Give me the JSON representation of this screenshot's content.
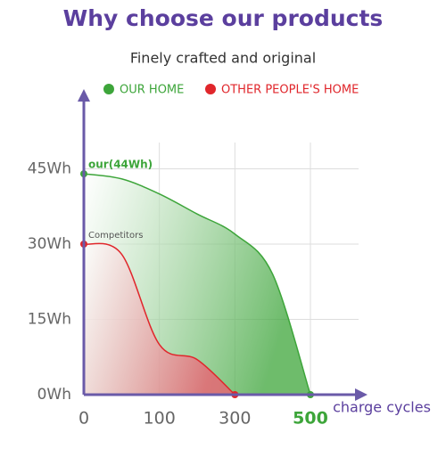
{
  "chart_data": {
    "type": "area-curve",
    "title": "Why choose our products",
    "subtitle": "Finely crafted and original",
    "x_label": "charge cycles",
    "categories": [
      "0",
      null,
      "100",
      null,
      "300",
      null,
      "500"
    ],
    "ylim": [
      0,
      60
    ],
    "yticks": [
      {
        "value": 0,
        "label": "0Wh"
      },
      {
        "value": 15,
        "label": "15Wh"
      },
      {
        "value": 30,
        "label": "30Wh"
      },
      {
        "value": 45,
        "label": "45Wh"
      }
    ],
    "grid": true,
    "series": [
      {
        "name": "OUR HOME",
        "color": "#3da53a",
        "values": [
          44,
          43,
          40,
          36,
          32,
          24,
          0
        ],
        "annotation": "our(44Wh)"
      },
      {
        "name": "OTHER PEOPLE'S HOME",
        "color": "#e0262b",
        "values": [
          30,
          28,
          10,
          7,
          0,
          null,
          null
        ],
        "annotation": "Competitors"
      }
    ]
  }
}
